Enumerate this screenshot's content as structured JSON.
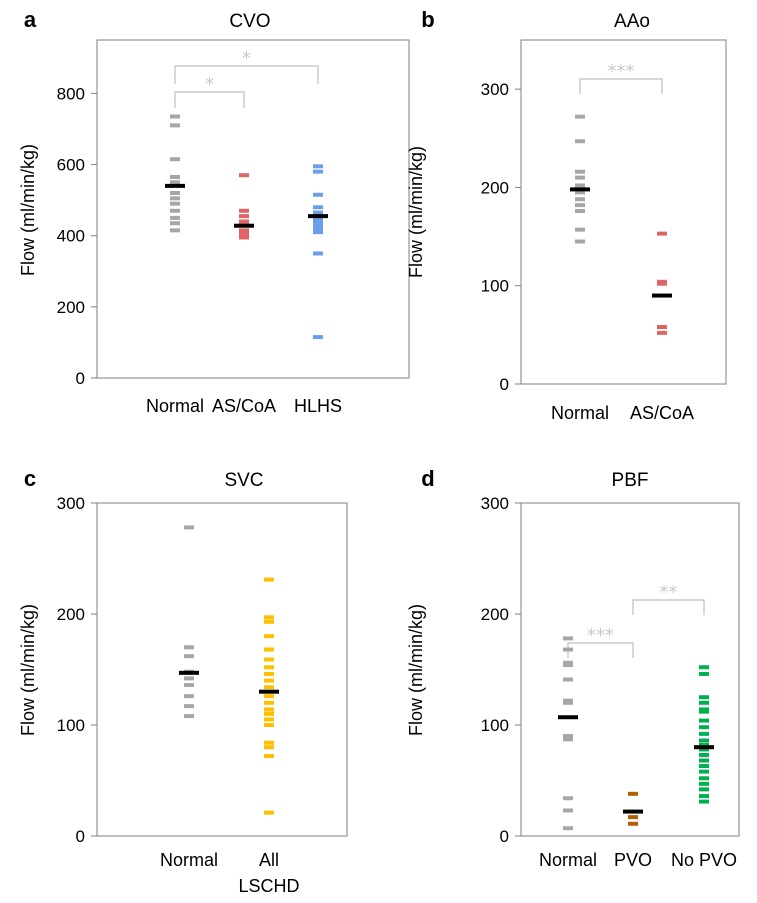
{
  "colors": {
    "normal": "#a6a6a6",
    "as_coa": "#e06666",
    "hlhs": "#6d9eeb",
    "lschd": "#ffc000",
    "pvo": "#b45f06",
    "no_pvo": "#00b050",
    "mean": "#000000",
    "bracket": "#bfbfbf"
  },
  "chart_data": [
    {
      "panel": "a",
      "type": "scatter",
      "title": "CVO",
      "ylabel": "Flow (ml/min/kg)",
      "ylim": [
        0,
        950
      ],
      "yticks": [
        0,
        200,
        400,
        600,
        800
      ],
      "categories": [
        "Normal",
        "AS/CoA",
        "HLHS"
      ],
      "series": [
        {
          "category": "Normal",
          "color_key": "normal",
          "mean": 540,
          "values": [
            735,
            710,
            615,
            565,
            550,
            520,
            505,
            490,
            470,
            450,
            435,
            415
          ]
        },
        {
          "category": "AS/CoA",
          "color_key": "as_coa",
          "mean": 428,
          "values": [
            570,
            470,
            455,
            440,
            430,
            415,
            405,
            395
          ]
        },
        {
          "category": "HLHS",
          "color_key": "hlhs",
          "mean": 455,
          "values": [
            595,
            580,
            515,
            480,
            465,
            450,
            440,
            430,
            420,
            410,
            350,
            115
          ]
        }
      ],
      "significance": [
        {
          "from": "Normal",
          "to": "AS/CoA",
          "label": "*"
        },
        {
          "from": "Normal",
          "to": "HLHS",
          "label": "*"
        }
      ]
    },
    {
      "panel": "b",
      "type": "scatter",
      "title": "AAo",
      "ylabel": "Flow (ml/min/kg)",
      "ylim": [
        0,
        350
      ],
      "yticks": [
        0,
        100,
        200,
        300
      ],
      "categories": [
        "Normal",
        "AS/CoA"
      ],
      "series": [
        {
          "category": "Normal",
          "color_key": "normal",
          "mean": 198,
          "values": [
            272,
            247,
            216,
            210,
            202,
            195,
            188,
            182,
            176,
            157,
            145
          ]
        },
        {
          "category": "AS/CoA",
          "color_key": "as_coa",
          "mean": 90,
          "values": [
            153,
            104,
            102,
            58,
            52
          ]
        }
      ],
      "significance": [
        {
          "from": "Normal",
          "to": "AS/CoA",
          "label": "***"
        }
      ]
    },
    {
      "panel": "c",
      "type": "scatter",
      "title": "SVC",
      "ylabel": "Flow (ml/min/kg)",
      "ylim": [
        0,
        300
      ],
      "yticks": [
        0,
        100,
        200,
        300
      ],
      "categories": [
        "Normal",
        "All\nLSCHD"
      ],
      "series": [
        {
          "category": "Normal",
          "color_key": "normal",
          "mean": 147,
          "values": [
            278,
            170,
            162,
            148,
            142,
            136,
            126,
            117,
            108
          ]
        },
        {
          "category": "All\nLSCHD",
          "color_key": "lschd",
          "mean": 130,
          "values": [
            231,
            197,
            193,
            180,
            168,
            159,
            152,
            146,
            140,
            134,
            126,
            120,
            114,
            110,
            105,
            100,
            84,
            80,
            72,
            21
          ]
        }
      ],
      "significance": []
    },
    {
      "panel": "d",
      "type": "scatter",
      "title": "PBF",
      "ylabel": "Flow (ml/min/kg)",
      "ylim": [
        0,
        300
      ],
      "yticks": [
        0,
        100,
        200,
        300
      ],
      "categories": [
        "Normal",
        "PVO",
        "No PVO"
      ],
      "series": [
        {
          "category": "Normal",
          "color_key": "normal",
          "mean": 107,
          "values": [
            178,
            168,
            156,
            154,
            141,
            122,
            120,
            90,
            87,
            34,
            23,
            7
          ]
        },
        {
          "category": "PVO",
          "color_key": "pvo",
          "mean": 22,
          "values": [
            38,
            17,
            11
          ]
        },
        {
          "category": "No PVO",
          "color_key": "no_pvo",
          "mean": 80,
          "values": [
            152,
            146,
            125,
            120,
            114,
            112,
            104,
            98,
            92,
            86,
            82,
            78,
            73,
            68,
            63,
            58,
            52,
            47,
            42,
            36,
            31
          ]
        }
      ],
      "significance": [
        {
          "from": "Normal",
          "to": "PVO",
          "label": "***"
        },
        {
          "from": "PVO",
          "to": "No PVO",
          "label": "**"
        }
      ]
    }
  ]
}
